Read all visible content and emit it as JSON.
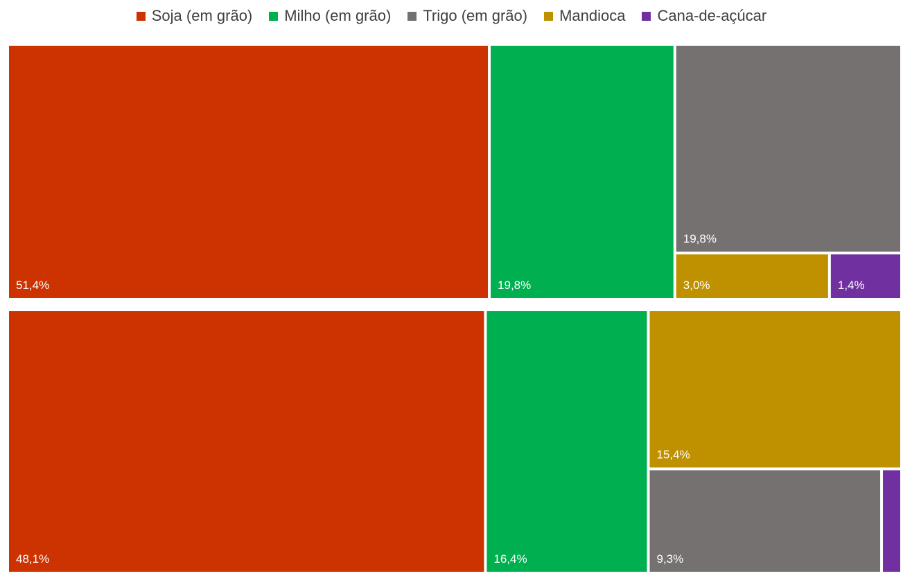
{
  "chart_data": {
    "type": "treemap",
    "legend": [
      {
        "name": "Soja (em grão)",
        "color": "#CC3300"
      },
      {
        "name": "Milho (em grão)",
        "color": "#00B050"
      },
      {
        "name": "Trigo (em grão)",
        "color": "#767171"
      },
      {
        "name": "Mandioca",
        "color": "#BF9000"
      },
      {
        "name": "Cana-de-açúcar",
        "color": "#7030A0"
      }
    ],
    "groups": [
      {
        "items": [
          {
            "name": "Soja (em grão)",
            "value": 51.4,
            "label": "51,4%"
          },
          {
            "name": "Milho (em grão)",
            "value": 19.8,
            "label": "19,8%"
          },
          {
            "name": "Trigo (em grão)",
            "value": 19.8,
            "label": "19,8%"
          },
          {
            "name": "Mandioca",
            "value": 3.0,
            "label": "3,0%"
          },
          {
            "name": "Cana-de-açúcar",
            "value": 1.4,
            "label": "1,4%"
          }
        ]
      },
      {
        "items": [
          {
            "name": "Soja (em grão)",
            "value": 48.1,
            "label": "48,1%"
          },
          {
            "name": "Milho (em grão)",
            "value": 16.4,
            "label": "16,4%"
          },
          {
            "name": "Mandioca",
            "value": 15.4,
            "label": "15,4%"
          },
          {
            "name": "Trigo (em grão)",
            "value": 9.3,
            "label": "9,3%"
          },
          {
            "name": "Cana-de-açúcar",
            "value": 0.8,
            "label": ""
          }
        ]
      }
    ]
  }
}
